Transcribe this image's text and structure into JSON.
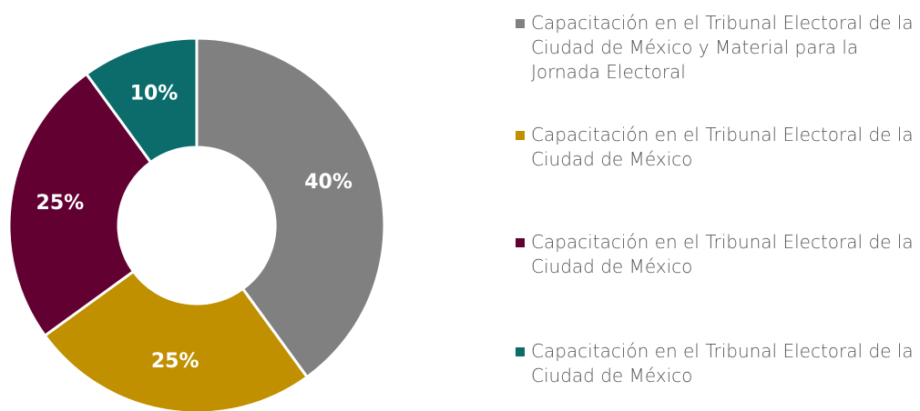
{
  "chart_data": {
    "type": "donut",
    "categories": [
      "Capacitación en el Tribunal Electoral de la Ciudad de México y Material para la Jornada Electoral",
      "Capacitación en el Tribunal Electoral de la Ciudad de México",
      "Capacitación en el Tribunal Electoral de la Ciudad de México",
      "Capacitación en el Tribunal Electoral de la Ciudad de México"
    ],
    "values": [
      40,
      25,
      25,
      10
    ],
    "value_labels": [
      "40%",
      "25%",
      "25%",
      "10%"
    ],
    "colors": [
      "#808080",
      "#c09000",
      "#620032",
      "#0c6b6b"
    ],
    "legend": "right"
  }
}
